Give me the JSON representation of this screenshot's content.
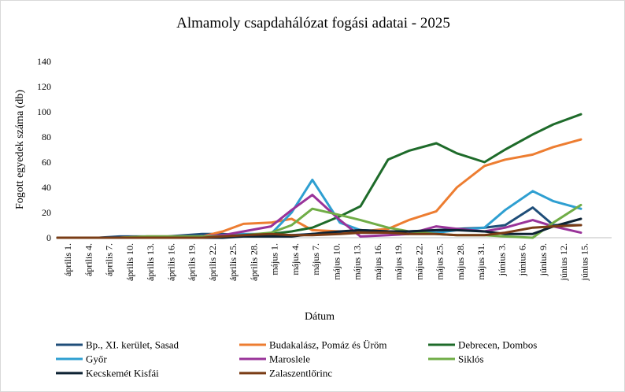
{
  "chart_data": {
    "type": "line",
    "title": "Almamoly csapdahálózat fogási adatai - 2025",
    "xlabel": "Dátum",
    "ylabel": "Fogott egyedek száma (db)",
    "ylim": [
      0,
      140
    ],
    "yticks": [
      0,
      20,
      40,
      60,
      80,
      100,
      120,
      140
    ],
    "grid": false,
    "legend": "bottom",
    "categories": [
      "április 1.",
      "április 4.",
      "április 7.",
      "április 10.",
      "április 13.",
      "április 16.",
      "április 19.",
      "április 22.",
      "április 25.",
      "április 28.",
      "május 1.",
      "május 4.",
      "május 7.",
      "május 10.",
      "május 13.",
      "május 16.",
      "május 19.",
      "május 22.",
      "május 25.",
      "május 28.",
      "május 31.",
      "június 3.",
      "június 6.",
      "június 9.",
      "június 12.",
      "június 15."
    ],
    "x": [
      "2025-04-01",
      "2025-04-04",
      "2025-04-07",
      "2025-04-10",
      "2025-04-14",
      "2025-04-17",
      "2025-04-22",
      "2025-04-25",
      "2025-04-28",
      "2025-05-02",
      "2025-05-05",
      "2025-05-08",
      "2025-05-12",
      "2025-05-15",
      "2025-05-19",
      "2025-05-22",
      "2025-05-26",
      "2025-05-29",
      "2025-06-02",
      "2025-06-05",
      "2025-06-09",
      "2025-06-12",
      "2025-06-16"
    ],
    "series": [
      {
        "name": "Bp., XI. kerület, Sasad",
        "color": "#1f4e79",
        "values": [
          0,
          0,
          0,
          1,
          1,
          1,
          3,
          3,
          2,
          2,
          2,
          3,
          4,
          6,
          5,
          5,
          6,
          7,
          8,
          10,
          24,
          10,
          10
        ]
      },
      {
        "name": "Budakalász, Pomáz és Üröm",
        "color": "#ed7d31",
        "values": [
          0,
          0,
          0,
          0,
          1,
          1,
          1,
          5,
          11,
          12,
          15,
          6,
          5,
          5,
          7,
          14,
          21,
          40,
          57,
          62,
          66,
          72,
          78
        ]
      },
      {
        "name": "Debrecen, Dombos",
        "color": "#1e6b2a",
        "values": [
          0,
          0,
          0,
          0,
          0,
          0,
          0,
          1,
          2,
          3,
          5,
          8,
          17,
          25,
          62,
          69,
          75,
          67,
          60,
          70,
          82,
          90,
          98
        ]
      },
      {
        "name": "Győr",
        "color": "#2e9fd1",
        "values": [
          0,
          0,
          0,
          0,
          0,
          0,
          1,
          2,
          3,
          3,
          20,
          46,
          12,
          6,
          5,
          5,
          4,
          6,
          8,
          22,
          37,
          29,
          23
        ]
      },
      {
        "name": "Maroslele",
        "color": "#993399",
        "values": [
          0,
          0,
          0,
          0,
          0,
          0,
          1,
          2,
          5,
          9,
          22,
          34,
          14,
          1,
          2,
          3,
          9,
          7,
          5,
          8,
          14,
          9,
          4
        ]
      },
      {
        "name": "Siklós",
        "color": "#70ad47",
        "values": [
          0,
          0,
          0,
          0,
          1,
          1,
          1,
          1,
          2,
          4,
          10,
          23,
          18,
          14,
          8,
          5,
          3,
          2,
          2,
          1,
          0,
          12,
          26
        ]
      },
      {
        "name": "Kecskemét Kisfái",
        "color": "#0d2233",
        "values": [
          0,
          0,
          0,
          0,
          0,
          0,
          0,
          0,
          1,
          1,
          1,
          3,
          5,
          6,
          5,
          5,
          6,
          6,
          5,
          3,
          3,
          9,
          15
        ]
      },
      {
        "name": "Zalaszentlőrinc",
        "color": "#7a3c15",
        "values": [
          0,
          0,
          0,
          0,
          0,
          0,
          0,
          1,
          2,
          3,
          2,
          2,
          3,
          4,
          4,
          3,
          3,
          2,
          2,
          4,
          8,
          9,
          10
        ]
      }
    ]
  }
}
